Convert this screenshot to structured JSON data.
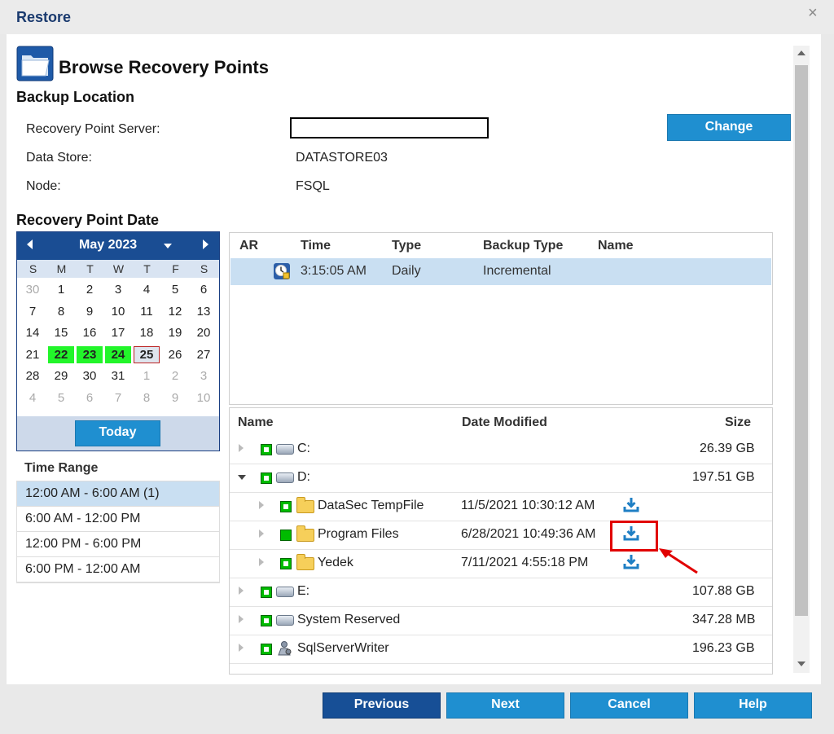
{
  "dialog": {
    "title": "Restore",
    "close_glyph": "×"
  },
  "page": {
    "title": "Browse Recovery Points"
  },
  "backup_location": {
    "heading": "Backup Location",
    "server_label": "Recovery Point Server:",
    "server_value": "",
    "datastore_label": "Data Store:",
    "datastore_value": "DATASTORE03",
    "node_label": "Node:",
    "node_value": "FSQL",
    "change_button": "Change"
  },
  "recovery_date": {
    "heading": "Recovery Point Date"
  },
  "calendar": {
    "month": "May 2023",
    "dow": [
      "S",
      "M",
      "T",
      "W",
      "T",
      "F",
      "S"
    ],
    "weeks": [
      [
        "30",
        "1",
        "2",
        "3",
        "4",
        "5",
        "6"
      ],
      [
        "7",
        "8",
        "9",
        "10",
        "11",
        "12",
        "13"
      ],
      [
        "14",
        "15",
        "16",
        "17",
        "18",
        "19",
        "20"
      ],
      [
        "21",
        "22",
        "23",
        "24",
        "25",
        "26",
        "27"
      ],
      [
        "28",
        "29",
        "30",
        "31",
        "1",
        "2",
        "3"
      ],
      [
        "4",
        "5",
        "6",
        "7",
        "8",
        "9",
        "10"
      ]
    ],
    "today_button": "Today",
    "highlight_color": "#22f52a"
  },
  "time_range": {
    "title": "Time Range",
    "items": [
      "12:00 AM - 6:00 AM   (1)",
      "6:00 AM - 12:00 PM",
      "12:00 PM - 6:00 PM",
      "6:00 PM - 12:00 AM"
    ]
  },
  "recovery_points": {
    "headers": {
      "ar": "AR",
      "time": "Time",
      "type": "Type",
      "backup_type": "Backup Type",
      "name": "Name"
    },
    "rows": [
      {
        "time": "3:15:05 AM",
        "type": "Daily",
        "backup_type": "Incremental",
        "name": ""
      }
    ]
  },
  "file_tree": {
    "headers": {
      "name": "Name",
      "date_modified": "Date Modified",
      "size": "Size"
    },
    "rows": [
      {
        "name": "C:",
        "date": "",
        "size": "26.39 GB"
      },
      {
        "name": "D:",
        "date": "",
        "size": "197.51 GB"
      },
      {
        "name": "DataSec TempFile",
        "date": "11/5/2021 10:30:12 AM",
        "size": ""
      },
      {
        "name": "Program Files",
        "date": "6/28/2021 10:49:36 AM",
        "size": ""
      },
      {
        "name": "Yedek",
        "date": "7/11/2021 4:55:18 PM",
        "size": ""
      },
      {
        "name": "E:",
        "date": "",
        "size": "107.88 GB"
      },
      {
        "name": "System Reserved",
        "date": "",
        "size": "347.28 MB"
      },
      {
        "name": "SqlServerWriter",
        "date": "",
        "size": "196.23 GB"
      }
    ]
  },
  "footer": {
    "previous": "Previous",
    "next": "Next",
    "cancel": "Cancel",
    "help": "Help"
  },
  "colors": {
    "accent": "#1f8fd0",
    "dark_accent": "#174f96",
    "selection": "#c9dff2",
    "annotation": "#e10000"
  }
}
